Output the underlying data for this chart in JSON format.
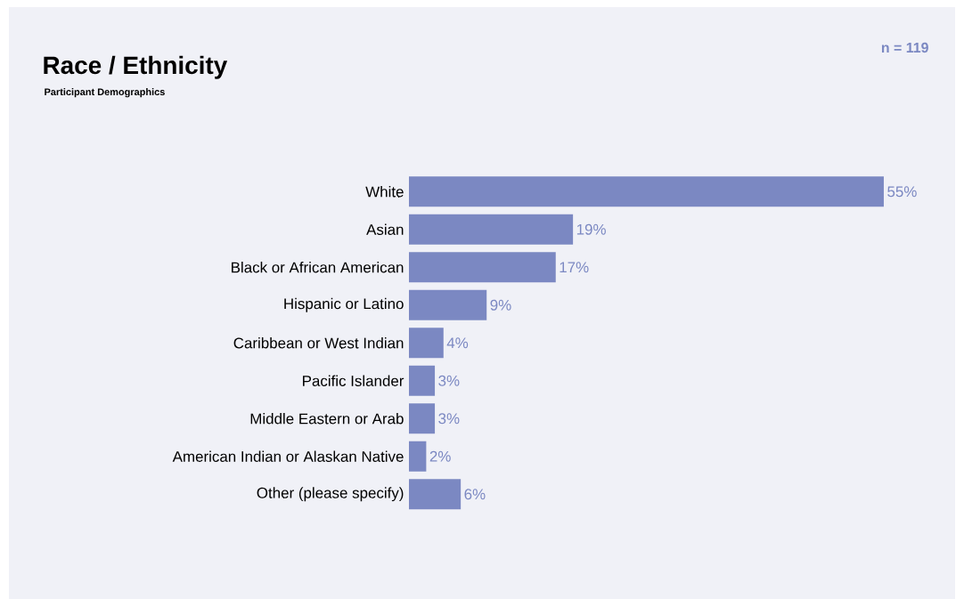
{
  "chart_data": {
    "type": "bar",
    "orientation": "horizontal",
    "title": "Race / Ethnicity",
    "subtitle": "Participant Demographics",
    "annotations": [
      "n = 119"
    ],
    "categories": [
      "White",
      "Asian",
      "Black or African American",
      "Hispanic or Latino",
      "Caribbean or West Indian",
      "Pacific Islander",
      "Middle Eastern or Arab",
      "American Indian or Alaskan Native",
      "Other (please specify)"
    ],
    "values": [
      55,
      19,
      17,
      9,
      4,
      3,
      3,
      2,
      6
    ],
    "value_labels": [
      "55%",
      "19%",
      "17%",
      "9%",
      "4%",
      "3%",
      "3%",
      "2%",
      "6%"
    ],
    "color": "#7b88c2"
  }
}
